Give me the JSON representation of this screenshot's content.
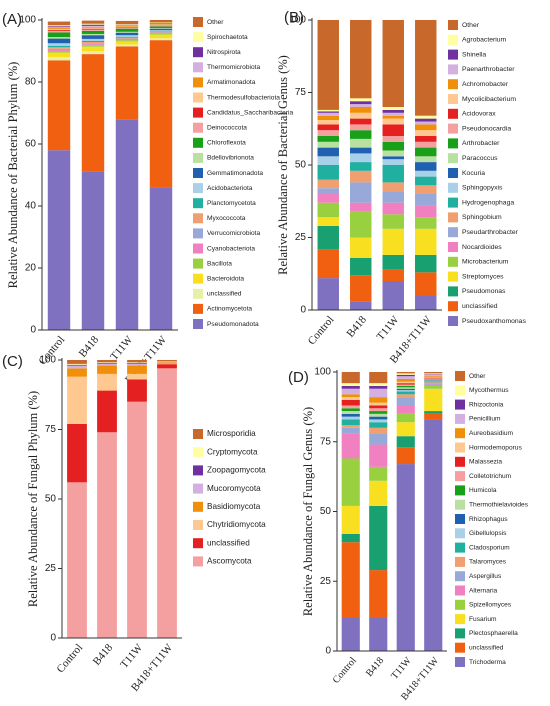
{
  "chart_data": [
    {
      "panel_label": "(A)",
      "type": "bar",
      "stacked": true,
      "ylabel": "Relative Abundance of Bacterial Phylum (%)",
      "categories": [
        "Control",
        "B418",
        "T11W",
        "B418+T11W"
      ],
      "ylim": [
        0,
        100
      ],
      "yticks": [
        0,
        20,
        40,
        60,
        80,
        100
      ],
      "series": [
        {
          "name": "Other",
          "color": "#c8682a",
          "values": [
            1.2,
            1.0,
            1.0,
            0.8
          ]
        },
        {
          "name": "Spirochaetota",
          "color": "#ffffa0",
          "values": [
            0.3,
            0.3,
            0.2,
            0.2
          ]
        },
        {
          "name": "Nitrospirota",
          "color": "#7030a0",
          "values": [
            0.3,
            0.4,
            0.2,
            0.2
          ]
        },
        {
          "name": "Thermomicrobiota",
          "color": "#d4b0e0",
          "values": [
            0.3,
            0.3,
            0.2,
            0.2
          ]
        },
        {
          "name": "Armatimonadota",
          "color": "#f0900a",
          "values": [
            0.3,
            0.3,
            0.2,
            0.2
          ]
        },
        {
          "name": "Thermodesulfobacteriota",
          "color": "#ffc890",
          "values": [
            0.3,
            0.3,
            0.2,
            0.2
          ]
        },
        {
          "name": "Candidatus_Saccharibacteria",
          "color": "#e52020",
          "values": [
            0.3,
            0.3,
            0.2,
            0.1
          ]
        },
        {
          "name": "Deinococcota",
          "color": "#f4a0a0",
          "values": [
            0.5,
            0.4,
            0.3,
            0.2
          ]
        },
        {
          "name": "Chloroflexota",
          "color": "#18a018",
          "values": [
            1.5,
            1.0,
            1.0,
            0.5
          ]
        },
        {
          "name": "Bdellovibrionota",
          "color": "#b8e0a0",
          "values": [
            0.5,
            0.4,
            0.3,
            0.2
          ]
        },
        {
          "name": "Gemmatimonadota",
          "color": "#2060b0",
          "values": [
            1.5,
            1.2,
            0.8,
            0.5
          ]
        },
        {
          "name": "Acidobacteriota",
          "color": "#a8d0e8",
          "values": [
            0.8,
            0.6,
            0.5,
            0.3
          ]
        },
        {
          "name": "Planctomycetota",
          "color": "#20b0a0",
          "values": [
            0.5,
            0.4,
            0.3,
            0.2
          ]
        },
        {
          "name": "Myxococcota",
          "color": "#f0a070",
          "values": [
            0.5,
            0.4,
            0.3,
            0.2
          ]
        },
        {
          "name": "Verrucomicrobiota",
          "color": "#98a8d8",
          "values": [
            0.4,
            0.3,
            0.3,
            0.2
          ]
        },
        {
          "name": "Cyanobacteriota",
          "color": "#f080c0",
          "values": [
            0.3,
            0.3,
            0.2,
            0.2
          ]
        },
        {
          "name": "Bacillota",
          "color": "#98d040",
          "values": [
            0.5,
            0.5,
            0.4,
            0.3
          ]
        },
        {
          "name": "Bacteroidota",
          "color": "#f8e020",
          "values": [
            1.5,
            1.5,
            1.0,
            1.2
          ]
        },
        {
          "name": "unclassified",
          "color": "#e8f0a8",
          "values": [
            1.0,
            0.9,
            0.6,
            0.6
          ]
        },
        {
          "name": "Actinomycetota",
          "color": "#f06010",
          "values": [
            29,
            38,
            23.5,
            47.5
          ]
        },
        {
          "name": "Pseudomonadota",
          "color": "#8070c0",
          "values": [
            58,
            51,
            68,
            46
          ]
        }
      ]
    },
    {
      "panel_label": "(B)",
      "type": "bar",
      "stacked": true,
      "ylabel": "Relative Abundance of Bacterial Genus (%)",
      "categories": [
        "Control",
        "B418",
        "T11W",
        "B418+T11W"
      ],
      "ylim": [
        0,
        100
      ],
      "yticks": [
        0,
        25,
        50,
        75,
        100
      ],
      "series": [
        {
          "name": "Other",
          "color": "#c8682a",
          "values": [
            31,
            27,
            30,
            33
          ]
        },
        {
          "name": "Agrobacterium",
          "color": "#ffffa0",
          "values": [
            0.5,
            1,
            1,
            1
          ]
        },
        {
          "name": "Shinella",
          "color": "#7030a0",
          "values": [
            0.5,
            1,
            1,
            1
          ]
        },
        {
          "name": "Paenarthrobacter",
          "color": "#d4b0e0",
          "values": [
            1,
            1,
            1,
            1
          ]
        },
        {
          "name": "Achromobacter",
          "color": "#f0900a",
          "values": [
            1.5,
            2,
            1,
            2
          ]
        },
        {
          "name": "Mycolicibacterium",
          "color": "#ffc890",
          "values": [
            1.5,
            2,
            2,
            2
          ]
        },
        {
          "name": "Acidovorax",
          "color": "#e52020",
          "values": [
            2,
            2,
            4,
            2
          ]
        },
        {
          "name": "Pseudonocardia",
          "color": "#f4a0a0",
          "values": [
            2,
            2,
            2,
            2
          ]
        },
        {
          "name": "Arthrobacter",
          "color": "#18a018",
          "values": [
            2,
            3,
            3,
            3
          ]
        },
        {
          "name": "Paracoccus",
          "color": "#b8e0a0",
          "values": [
            2,
            3,
            2,
            2
          ]
        },
        {
          "name": "Kocuria",
          "color": "#2060b0",
          "values": [
            3,
            2,
            1,
            3
          ]
        },
        {
          "name": "Sphingopyxis",
          "color": "#a8d0e8",
          "values": [
            3,
            3,
            2,
            2
          ]
        },
        {
          "name": "Hydrogenophaga",
          "color": "#20b0a0",
          "values": [
            5,
            3,
            6,
            3
          ]
        },
        {
          "name": "Sphingobium",
          "color": "#f0a070",
          "values": [
            3,
            4,
            3,
            3
          ]
        },
        {
          "name": "Pseudarthrobacter",
          "color": "#98a8d8",
          "values": [
            2,
            7,
            4,
            4
          ]
        },
        {
          "name": "Nocardioides",
          "color": "#f080c0",
          "values": [
            3,
            3,
            4,
            4
          ]
        },
        {
          "name": "Microbacterium",
          "color": "#98d040",
          "values": [
            5,
            9,
            5,
            4
          ]
        },
        {
          "name": "Streptomyces",
          "color": "#f8e020",
          "values": [
            3,
            7,
            9,
            9
          ]
        },
        {
          "name": "Pseudomonas",
          "color": "#18a070",
          "values": [
            8,
            6,
            5,
            6
          ]
        },
        {
          "name": "unclassified",
          "color": "#f06010",
          "values": [
            10,
            9,
            4,
            8
          ]
        },
        {
          "name": "Pseudoxanthomonas",
          "color": "#8070c0",
          "values": [
            11,
            3,
            10,
            5
          ]
        }
      ]
    },
    {
      "panel_label": "(C)",
      "type": "bar",
      "stacked": true,
      "ylabel": "Relative Abundance of Fungal Phylum (%)",
      "categories": [
        "Control",
        "B418",
        "T11W",
        "B418+T11W"
      ],
      "ylim": [
        0,
        100
      ],
      "yticks": [
        0,
        25,
        50,
        75,
        100
      ],
      "series": [
        {
          "name": "Microsporidia",
          "color": "#c8682a",
          "values": [
            1.4,
            0.8,
            0.8,
            0.4
          ]
        },
        {
          "name": "Cryptomycota",
          "color": "#ffffa0",
          "values": [
            0.3,
            0.2,
            0.2,
            0.1
          ]
        },
        {
          "name": "Zoopagomycota",
          "color": "#7030a0",
          "values": [
            0.3,
            0.3,
            0.3,
            0.1
          ]
        },
        {
          "name": "Mucoromycota",
          "color": "#d4b0e0",
          "values": [
            1,
            0.7,
            0.7,
            0.2
          ]
        },
        {
          "name": "Basidiomycota",
          "color": "#f0900a",
          "values": [
            3,
            3,
            3,
            0.5
          ]
        },
        {
          "name": "Chytridiomycota",
          "color": "#ffc890",
          "values": [
            17,
            6,
            2,
            0.2
          ]
        },
        {
          "name": "unclassified",
          "color": "#e52020",
          "values": [
            21,
            15,
            8,
            1.5
          ]
        },
        {
          "name": "Ascomycota",
          "color": "#f4a0a0",
          "values": [
            56,
            74,
            85,
            97
          ]
        }
      ]
    },
    {
      "panel_label": "(D)",
      "type": "bar",
      "stacked": true,
      "ylabel": "Relative Abundance of Fungal Genus (%)",
      "categories": [
        "Control",
        "B418",
        "T11W",
        "B418+T11W"
      ],
      "ylim": [
        0,
        100
      ],
      "yticks": [
        0,
        25,
        50,
        75,
        100
      ],
      "series": [
        {
          "name": "Other",
          "color": "#c8682a",
          "values": [
            4,
            4,
            0.5,
            0.5
          ]
        },
        {
          "name": "Mycothermus",
          "color": "#ffffa0",
          "values": [
            1,
            1,
            0.5,
            0.3
          ]
        },
        {
          "name": "Rhizoctonia",
          "color": "#7030a0",
          "values": [
            1,
            1,
            0.5,
            0.2
          ]
        },
        {
          "name": "Penicillium",
          "color": "#d4b0e0",
          "values": [
            2,
            3,
            1,
            0.5
          ]
        },
        {
          "name": "Aureobasidium",
          "color": "#f0900a",
          "values": [
            1,
            2,
            1,
            0.5
          ]
        },
        {
          "name": "Hormodemoporus",
          "color": "#ffc890",
          "values": [
            1,
            1,
            0.5,
            0.2
          ]
        },
        {
          "name": "Malassezia",
          "color": "#e52020",
          "values": [
            2,
            1,
            0.5,
            0.2
          ]
        },
        {
          "name": "Colletotrichum",
          "color": "#f4a0a0",
          "values": [
            1,
            1,
            0.5,
            0.2
          ]
        },
        {
          "name": "Humicola",
          "color": "#18a018",
          "values": [
            1,
            1,
            0.5,
            0.2
          ]
        },
        {
          "name": "Thermothielavioides",
          "color": "#b8e0a0",
          "values": [
            1,
            1,
            0.5,
            0.2
          ]
        },
        {
          "name": "Rhizophagus",
          "color": "#2060b0",
          "values": [
            1,
            1,
            0.5,
            0.2
          ]
        },
        {
          "name": "Gibellulopsis",
          "color": "#a8d0e8",
          "values": [
            1,
            1,
            0.5,
            0.2
          ]
        },
        {
          "name": "Cladosporium",
          "color": "#20b0a0",
          "values": [
            2,
            2,
            1,
            0.3
          ]
        },
        {
          "name": "Talaromyces",
          "color": "#f0a070",
          "values": [
            1,
            2,
            1,
            0.3
          ]
        },
        {
          "name": "Aspergillus",
          "color": "#98a8d8",
          "values": [
            2,
            4,
            3,
            0.5
          ]
        },
        {
          "name": "Alternaria",
          "color": "#f080c0",
          "values": [
            9,
            8,
            3,
            0.5
          ]
        },
        {
          "name": "Spizellomyces",
          "color": "#98d040",
          "values": [
            17,
            5,
            3,
            1
          ]
        },
        {
          "name": "Fusarium",
          "color": "#f8e020",
          "values": [
            10,
            9,
            5,
            8
          ]
        },
        {
          "name": "Plectosphaerella",
          "color": "#18a070",
          "values": [
            3,
            23,
            4,
            1
          ]
        },
        {
          "name": "unclassified",
          "color": "#f06010",
          "values": [
            27,
            17,
            6,
            2
          ]
        },
        {
          "name": "Trichoderma",
          "color": "#8070c0",
          "values": [
            12,
            12,
            67,
            83
          ]
        }
      ]
    }
  ]
}
